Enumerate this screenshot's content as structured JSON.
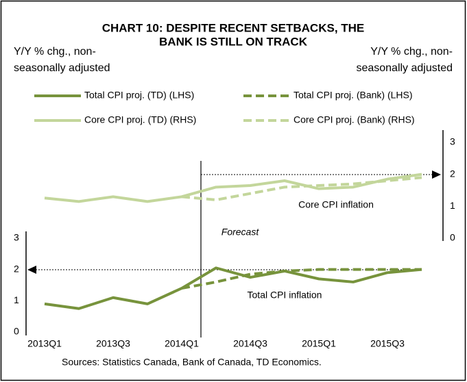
{
  "chart_data": {
    "type": "line",
    "title": [
      "CHART 10: DESPITE RECENT SETBACKS, THE",
      "BANK IS STILL ON TRACK"
    ],
    "y_label": [
      "Y/Y % chg., non-",
      "seasonally adjusted"
    ],
    "y2_label": [
      "Y/Y % chg., non-",
      "seasonally adjusted"
    ],
    "categories": [
      "2013Q1",
      null,
      "2013Q3",
      null,
      "2014Q1",
      null,
      "2014Q3",
      null,
      "2015Q1",
      null,
      "2015Q3",
      null
    ],
    "series": [
      {
        "name": "Total CPI proj. (TD) (LHS)",
        "color": "#77933c",
        "dashed": false,
        "values": [
          0.9,
          0.75,
          1.1,
          0.9,
          1.4,
          2.05,
          1.75,
          1.95,
          1.7,
          1.6,
          1.9,
          2.0
        ]
      },
      {
        "name": "Total CPI proj. (Bank) (LHS)",
        "color": "#77933c",
        "dashed": true,
        "values": [
          null,
          null,
          null,
          null,
          1.4,
          1.6,
          1.85,
          1.95,
          2.0,
          2.0,
          2.0,
          2.0
        ]
      },
      {
        "name": "Core CPI proj. (TD) (RHS)",
        "color": "#c3d69b",
        "dashed": false,
        "axis": "y2",
        "values": [
          1.26,
          1.15,
          1.3,
          1.15,
          1.3,
          1.6,
          1.65,
          1.8,
          1.55,
          1.6,
          1.85,
          2.0
        ]
      },
      {
        "name": "Core CPI proj. (Bank) (RHS)",
        "color": "#c3d69b",
        "dashed": true,
        "axis": "y2",
        "values": [
          null,
          null,
          null,
          null,
          1.3,
          1.2,
          1.4,
          1.6,
          1.65,
          1.7,
          1.8,
          1.9
        ]
      }
    ],
    "ylim": [
      0,
      3
    ],
    "yticks": [
      0,
      1,
      2,
      3
    ],
    "y2lim": [
      0,
      3
    ],
    "y2ticks": [
      0,
      1,
      2,
      3
    ],
    "annotations": [
      "Core CPI inflation",
      "Forecast",
      "Total CPI inflation"
    ],
    "source": "Sources: Statistics Canada, Bank of Canada, TD Economics."
  }
}
